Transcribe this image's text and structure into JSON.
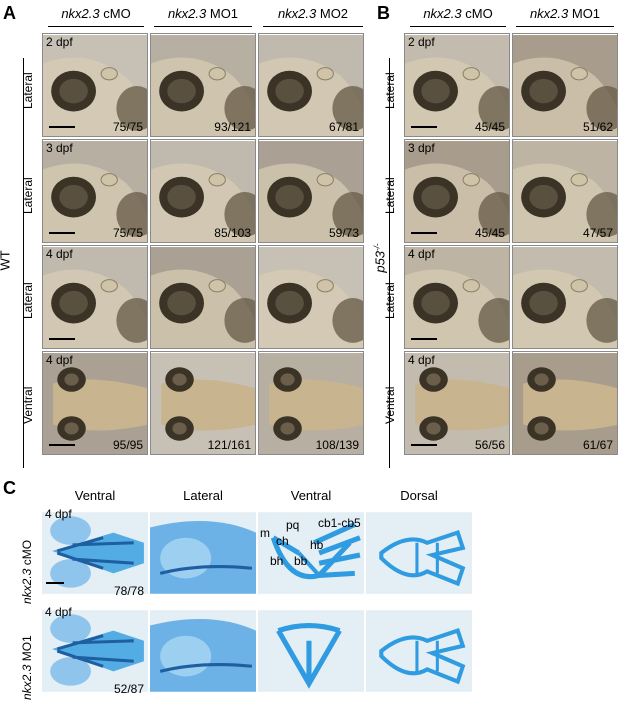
{
  "panels": {
    "A": {
      "letter": "A",
      "columns": [
        {
          "gene": "nkx2.3",
          "suffix": " cMO"
        },
        {
          "gene": "nkx2.3",
          "suffix": " MO1"
        },
        {
          "gene": "nkx2.3",
          "suffix": " MO2"
        }
      ],
      "group_label": "WT",
      "rows": [
        {
          "view": "Lateral",
          "stage": "2 dpf",
          "counts": [
            "75/75",
            "93/121",
            "67/81"
          ]
        },
        {
          "view": "Lateral",
          "stage": "3 dpf",
          "counts": [
            "75/75",
            "85/103",
            "59/73"
          ]
        },
        {
          "view": "Lateral",
          "stage": "4 dpf",
          "counts": [
            "",
            "",
            ""
          ]
        },
        {
          "view": "Ventral",
          "stage": "4 dpf",
          "counts": [
            "95/95",
            "121/161",
            "108/139"
          ]
        }
      ]
    },
    "B": {
      "letter": "B",
      "columns": [
        {
          "gene": "nkx2.3",
          "suffix": " cMO"
        },
        {
          "gene": "nkx2.3",
          "suffix": " MO1"
        }
      ],
      "group_label": "p53",
      "group_sup": "-/-",
      "rows": [
        {
          "view": "Lateral",
          "stage": "2 dpf",
          "counts": [
            "45/45",
            "51/62"
          ]
        },
        {
          "view": "Lateral",
          "stage": "3 dpf",
          "counts": [
            "45/45",
            "47/57"
          ]
        },
        {
          "view": "Lateral",
          "stage": "4 dpf",
          "counts": [
            "",
            ""
          ]
        },
        {
          "view": "Ventral",
          "stage": "4 dpf",
          "counts": [
            "56/56",
            "61/67"
          ]
        }
      ]
    },
    "C": {
      "letter": "C",
      "columns": [
        "Ventral",
        "Lateral",
        "Ventral",
        "Dorsal"
      ],
      "rows": [
        {
          "gene": "nkx2.3",
          "suffix": " cMO",
          "stage": "4 dpf",
          "count": "78/78"
        },
        {
          "gene": "nkx2.3",
          "suffix": " MO1",
          "stage": "4 dpf",
          "count": "52/87"
        }
      ],
      "cartilage_labels": {
        "m": "m",
        "pq": "pq",
        "ch": "ch",
        "cb": "cb1-cb5",
        "hb": "hb",
        "bh": "bh",
        "bb": "bb"
      }
    }
  },
  "colors": {
    "brightfield_bg": "#b9b3a8",
    "alcian_blue": "#2f9be0",
    "alcian_bg": "#e3eef5"
  }
}
